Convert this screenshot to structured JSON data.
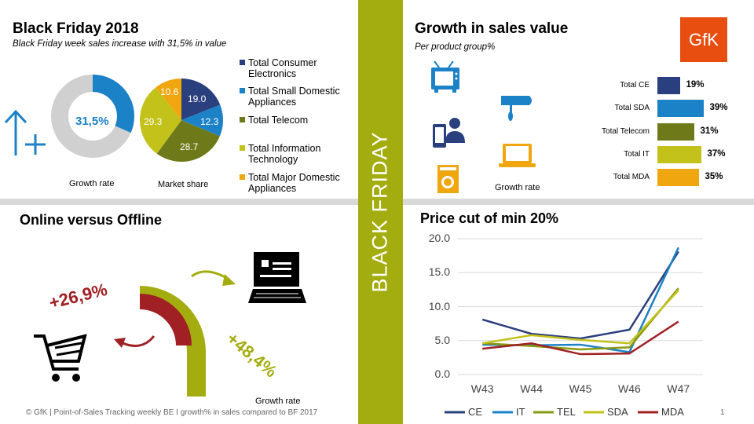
{
  "header_left": {
    "title": "Black Friday 2018",
    "subtitle": "Black Friday week sales increase with 31,5% in value"
  },
  "donut": {
    "value_label": "31,5%",
    "fraction": 0.315,
    "caption": "Growth rate",
    "colors": {
      "fill": "#1F7FC8",
      "rest": "#D0D0D0"
    }
  },
  "pie": {
    "caption": "Market share",
    "slices": [
      {
        "label": "19.0",
        "value": 19.0,
        "color": "#2A3F7E"
      },
      {
        "label": "12.3",
        "value": 12.3,
        "color": "#1C82C7"
      },
      {
        "label": "28.7",
        "value": 28.7,
        "color": "#6E7A1A"
      },
      {
        "label": "29.3",
        "value": 29.3,
        "color": "#C3C21A"
      },
      {
        "label": "10.6",
        "value": 10.6,
        "color": "#F0A60F"
      }
    ]
  },
  "legend": [
    {
      "label": "Total Consumer Electronics",
      "color": "#2A3F7E"
    },
    {
      "label": "Total Small Domestic Appliances",
      "color": "#1C82C7"
    },
    {
      "label": "Total Telecom",
      "color": "#6E7A1A"
    },
    {
      "label": "Total Information Technology",
      "color": "#C3C21A"
    },
    {
      "label": "Total Major Domestic Appliances",
      "color": "#F0A60F"
    }
  ],
  "center_banner": {
    "text": "BLACK FRIDAY",
    "color": "#A3AD0F"
  },
  "header_right": {
    "title": "Growth in sales value",
    "subtitle": "Per product group%",
    "logo": "GfK",
    "caption": "Growth rate"
  },
  "icons": [
    "tv-icon",
    "phone-person-icon",
    "washing-machine-icon",
    "mixer-icon",
    "laptop-icon"
  ],
  "growth_bars": [
    {
      "label": "Total CE",
      "value": 19,
      "text": "19%",
      "color": "#2A3F7E"
    },
    {
      "label": "Total SDA",
      "value": 39,
      "text": "39%",
      "color": "#1C82C7"
    },
    {
      "label": "Total Telecom",
      "value": 31,
      "text": "31%",
      "color": "#6E7A1A"
    },
    {
      "label": "Total IT",
      "value": 37,
      "text": "37%",
      "color": "#C3C21A"
    },
    {
      "label": "Total MDA",
      "value": 35,
      "text": "35%",
      "color": "#F0A60F"
    }
  ],
  "online": {
    "title": "Online versus Offline",
    "offline_value": "+26,9%",
    "online_value": "+48,4%",
    "caption": "Growth rate",
    "colors": {
      "offline": "#A02024",
      "online": "#A3AD0F"
    }
  },
  "chart_data": {
    "type": "line",
    "title": "Price cut of min 20%",
    "categories": [
      "W43",
      "W44",
      "W45",
      "W46",
      "W47"
    ],
    "ylim": [
      0,
      20
    ],
    "yticks": [
      "0.0",
      "5.0",
      "10.0",
      "15.0",
      "20.0"
    ],
    "grid": true,
    "legend_position": "bottom",
    "series": [
      {
        "name": "CE",
        "values": [
          8.1,
          6.0,
          5.3,
          6.6,
          18.1
        ],
        "color": "#2A3F7E"
      },
      {
        "name": "IT",
        "values": [
          4.4,
          4.3,
          4.4,
          3.3,
          18.7
        ],
        "color": "#1C82C7"
      },
      {
        "name": "TEL",
        "values": [
          4.6,
          4.2,
          3.7,
          4.0,
          12.7
        ],
        "color": "#8A9A10"
      },
      {
        "name": "SDA",
        "values": [
          4.6,
          5.8,
          5.1,
          4.6,
          12.4
        ],
        "color": "#C3C21A"
      },
      {
        "name": "MDA",
        "values": [
          3.8,
          4.6,
          3.0,
          3.1,
          7.8
        ],
        "color": "#A02024"
      }
    ]
  },
  "footer": {
    "source": "© GfK | Point-of-Sales Tracking weekly BE I growth% in sales compared to BF 2017",
    "page": "1"
  }
}
